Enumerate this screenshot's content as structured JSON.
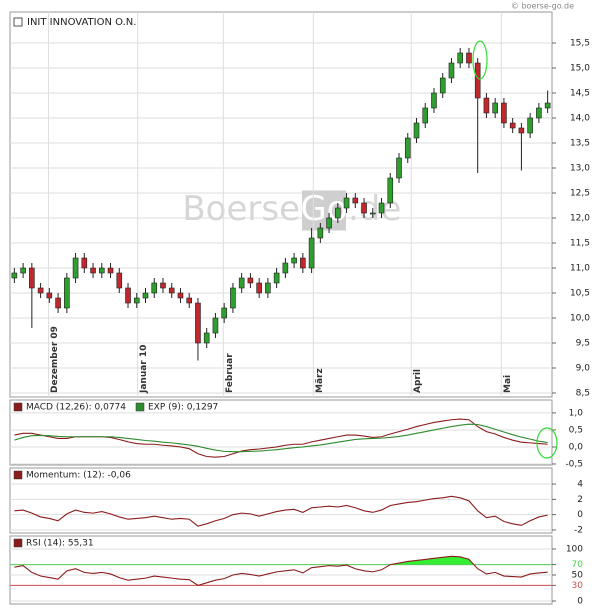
{
  "copyright": "© boerse-go.de",
  "chart_data": [
    {
      "type": "candlestick",
      "title": "INIT INNOVATION O.N.",
      "watermark": [
        "Boerse",
        "Go",
        ".de"
      ],
      "up_color": "#2e9e2e",
      "down_color": "#c0282d",
      "grid": true,
      "open": [
        10.8,
        10.9,
        11.0,
        10.6,
        10.5,
        10.4,
        10.2,
        10.8,
        11.2,
        11.0,
        10.9,
        11.0,
        10.9,
        10.6,
        10.3,
        10.4,
        10.5,
        10.7,
        10.6,
        10.5,
        10.4,
        10.3,
        9.5,
        9.7,
        10.0,
        10.2,
        10.6,
        10.8,
        10.7,
        10.5,
        10.7,
        10.9,
        11.1,
        11.2,
        11.0,
        11.6,
        11.8,
        12.0,
        12.2,
        12.4,
        12.3,
        12.1,
        12.1,
        12.3,
        12.8,
        13.2,
        13.6,
        13.9,
        14.2,
        14.5,
        14.8,
        15.1,
        15.3,
        15.1,
        14.4,
        14.1,
        14.3,
        13.9,
        13.8,
        13.7,
        14.0,
        14.2
      ],
      "high": [
        11.0,
        11.1,
        11.1,
        10.7,
        10.6,
        10.5,
        10.9,
        11.3,
        11.3,
        11.1,
        11.1,
        11.1,
        11.0,
        10.7,
        10.5,
        10.6,
        10.8,
        10.8,
        10.7,
        10.6,
        10.5,
        10.4,
        9.8,
        10.1,
        10.3,
        10.7,
        10.9,
        10.9,
        10.8,
        10.8,
        11.0,
        11.2,
        11.3,
        11.3,
        11.8,
        11.9,
        12.1,
        12.3,
        12.5,
        12.5,
        12.4,
        12.2,
        12.4,
        12.9,
        13.3,
        13.7,
        14.0,
        14.3,
        14.6,
        14.9,
        15.2,
        15.4,
        15.4,
        15.2,
        14.5,
        14.4,
        14.4,
        14.0,
        13.9,
        14.1,
        14.3,
        14.55
      ],
      "low": [
        10.7,
        10.8,
        9.8,
        10.4,
        10.3,
        10.1,
        10.1,
        10.7,
        10.9,
        10.8,
        10.8,
        10.8,
        10.5,
        10.2,
        10.2,
        10.3,
        10.4,
        10.5,
        10.4,
        10.3,
        10.2,
        9.15,
        9.4,
        9.6,
        9.9,
        10.1,
        10.5,
        10.6,
        10.4,
        10.4,
        10.6,
        10.8,
        11.0,
        10.9,
        10.9,
        11.5,
        11.7,
        11.9,
        12.1,
        12.2,
        12.0,
        12.0,
        12.0,
        12.2,
        12.7,
        13.1,
        13.5,
        13.8,
        14.1,
        14.4,
        14.7,
        15.0,
        15.0,
        12.9,
        14.0,
        14.0,
        13.8,
        13.7,
        12.95,
        13.6,
        13.9,
        14.1
      ],
      "close": [
        10.9,
        11.0,
        10.6,
        10.5,
        10.4,
        10.2,
        10.8,
        11.2,
        11.0,
        10.9,
        11.0,
        10.9,
        10.6,
        10.3,
        10.4,
        10.5,
        10.7,
        10.6,
        10.5,
        10.4,
        10.3,
        9.5,
        9.7,
        10.0,
        10.2,
        10.6,
        10.8,
        10.7,
        10.5,
        10.7,
        10.9,
        11.1,
        11.2,
        11.0,
        11.6,
        11.8,
        12.0,
        12.2,
        12.4,
        12.3,
        12.1,
        12.1,
        12.3,
        12.8,
        13.2,
        13.6,
        13.9,
        14.2,
        14.5,
        14.8,
        15.1,
        15.3,
        15.1,
        14.4,
        14.1,
        14.3,
        13.9,
        13.8,
        13.7,
        14.0,
        14.2,
        14.3
      ],
      "xlim": [
        -0.5,
        61.5
      ],
      "xticks": [
        {
          "value": 3.9,
          "label": "Dezember 09"
        },
        {
          "value": 14.1,
          "label": "Januar 10"
        },
        {
          "value": 23.9,
          "label": "Februar"
        },
        {
          "value": 34.2,
          "label": "März"
        },
        {
          "value": 45.4,
          "label": "April"
        },
        {
          "value": 55.7,
          "label": "Mai"
        }
      ],
      "ylim": [
        8.42,
        16.12
      ],
      "yticks": [
        {
          "value": 8.5,
          "label": "8,5"
        },
        {
          "value": 9,
          "label": "9,0"
        },
        {
          "value": 9.5,
          "label": "9,5"
        },
        {
          "value": 10,
          "label": "10,0"
        },
        {
          "value": 10.5,
          "label": "10,5"
        },
        {
          "value": 11,
          "label": "11,0"
        },
        {
          "value": 11.5,
          "label": "11,5"
        },
        {
          "value": 12,
          "label": "12,0"
        },
        {
          "value": 12.5,
          "label": "12,5"
        },
        {
          "value": 13,
          "label": "13,0"
        },
        {
          "value": 13.5,
          "label": "13,5"
        },
        {
          "value": 14,
          "label": "14,0"
        },
        {
          "value": 14.5,
          "label": "14,5"
        },
        {
          "value": 15,
          "label": "15,0"
        },
        {
          "value": 15.5,
          "label": "15,5"
        }
      ]
    },
    {
      "type": "line",
      "grid": true,
      "series": [
        {
          "name": "MACD (12,26): 0,0774",
          "color": "#8b1c1c",
          "values": [
            0.35,
            0.4,
            0.4,
            0.35,
            0.3,
            0.25,
            0.25,
            0.3,
            0.3,
            0.3,
            0.3,
            0.28,
            0.22,
            0.15,
            0.1,
            0.08,
            0.08,
            0.05,
            0.03,
            0.0,
            -0.05,
            -0.2,
            -0.28,
            -0.3,
            -0.28,
            -0.2,
            -0.12,
            -0.08,
            -0.06,
            -0.03,
            0.0,
            0.05,
            0.08,
            0.08,
            0.15,
            0.2,
            0.25,
            0.3,
            0.35,
            0.35,
            0.32,
            0.28,
            0.3,
            0.38,
            0.45,
            0.52,
            0.6,
            0.66,
            0.72,
            0.76,
            0.8,
            0.82,
            0.8,
            0.6,
            0.45,
            0.38,
            0.28,
            0.2,
            0.14,
            0.12,
            0.1,
            0.08
          ]
        },
        {
          "name": "EXP (9): 0,1297",
          "color": "#2e8b2e",
          "values": [
            0.2,
            0.28,
            0.33,
            0.34,
            0.33,
            0.31,
            0.3,
            0.3,
            0.3,
            0.3,
            0.3,
            0.3,
            0.28,
            0.25,
            0.22,
            0.19,
            0.17,
            0.14,
            0.12,
            0.09,
            0.06,
            0.02,
            -0.04,
            -0.09,
            -0.13,
            -0.14,
            -0.14,
            -0.13,
            -0.12,
            -0.1,
            -0.08,
            -0.05,
            -0.02,
            0.0,
            0.03,
            0.06,
            0.1,
            0.14,
            0.18,
            0.22,
            0.24,
            0.25,
            0.26,
            0.28,
            0.31,
            0.35,
            0.4,
            0.45,
            0.5,
            0.55,
            0.6,
            0.64,
            0.67,
            0.66,
            0.6,
            0.52,
            0.44,
            0.36,
            0.29,
            0.23,
            0.17,
            0.13
          ]
        }
      ],
      "ylim": [
        -0.53,
        1.38
      ],
      "yticks": [
        {
          "value": -0.5,
          "label": "-0,5"
        },
        {
          "value": 0,
          "label": "0,0"
        },
        {
          "value": 0.5,
          "label": "0,5"
        },
        {
          "value": 1,
          "label": "1,0"
        }
      ]
    },
    {
      "type": "line",
      "grid": true,
      "series": [
        {
          "name": "Momentum: (12): -0,06",
          "color": "#8b1c1c",
          "values": [
            0.5,
            0.6,
            0.2,
            -0.3,
            -0.5,
            -0.8,
            0.1,
            0.6,
            0.3,
            0.2,
            0.4,
            0.1,
            -0.3,
            -0.6,
            -0.5,
            -0.4,
            -0.2,
            -0.4,
            -0.6,
            -0.5,
            -0.6,
            -1.5,
            -1.2,
            -0.8,
            -0.5,
            0.0,
            0.2,
            0.1,
            -0.2,
            0.1,
            0.4,
            0.6,
            0.7,
            0.3,
            0.9,
            1.0,
            1.1,
            1.0,
            1.2,
            0.9,
            0.5,
            0.3,
            0.6,
            1.2,
            1.4,
            1.6,
            1.7,
            1.9,
            2.1,
            2.2,
            2.4,
            2.2,
            1.8,
            0.5,
            -0.4,
            -0.2,
            -0.9,
            -1.2,
            -1.4,
            -0.8,
            -0.3,
            -0.06
          ]
        }
      ],
      "ylim": [
        -2.4,
        6.1
      ],
      "yticks": [
        -2,
        0,
        2,
        4
      ]
    },
    {
      "type": "line",
      "grid": true,
      "series": [
        {
          "name": "RSI (14): 55,31",
          "color": "#8b1c1c",
          "values": [
            65,
            68,
            55,
            48,
            45,
            42,
            58,
            62,
            55,
            53,
            55,
            52,
            45,
            40,
            42,
            44,
            48,
            46,
            44,
            42,
            41,
            30,
            35,
            40,
            43,
            50,
            53,
            51,
            48,
            52,
            56,
            58,
            60,
            54,
            64,
            66,
            68,
            67,
            69,
            62,
            58,
            56,
            60,
            70,
            73,
            76,
            78,
            80,
            82,
            84,
            86,
            85,
            80,
            62,
            52,
            55,
            48,
            47,
            46,
            52,
            54,
            55.31
          ]
        }
      ],
      "ref_lines": [
        {
          "value": 70,
          "color": "#55cc55",
          "fill": "#33ee33"
        },
        {
          "value": 30,
          "color": "#d05050"
        }
      ],
      "ylim": [
        -5.8,
        125
      ],
      "yticks": [
        0,
        30,
        50,
        70,
        100
      ]
    }
  ]
}
